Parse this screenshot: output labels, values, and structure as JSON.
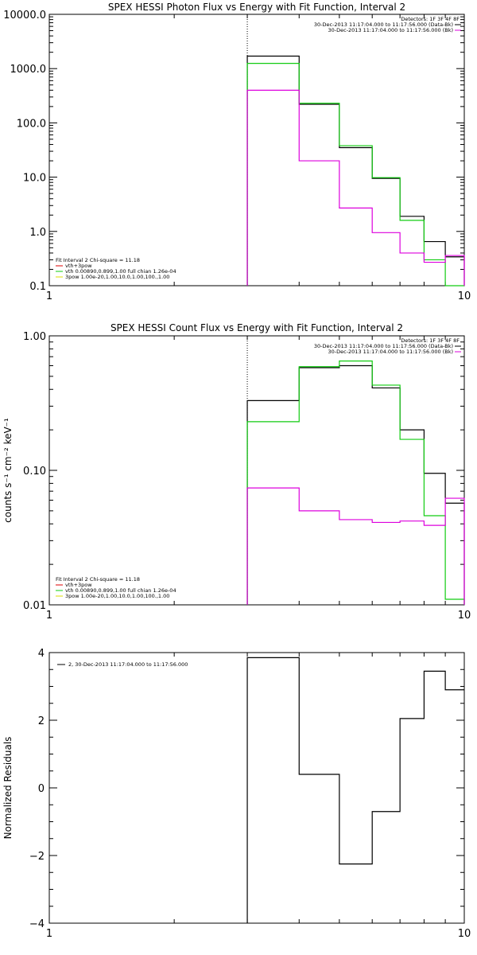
{
  "chart_data": [
    {
      "type": "line",
      "title": "SPEX HESSI Photon Flux vs Energy with Fit Function, Interval 2",
      "xlabel": "",
      "ylabel": "",
      "xscale": "log",
      "yscale": "log",
      "xlim": [
        1,
        10
      ],
      "ylim": [
        0.1,
        10000
      ],
      "x_ticks": [
        "1",
        "10"
      ],
      "y_ticks": [
        "0.1",
        "1.0",
        "10.0",
        "100.0",
        "1000.0",
        "10000.0"
      ],
      "vline_x": 3,
      "legend_top_right": [
        "Detectors: 1F 3F 4F 8F",
        "30-Dec-2013 11:17:04.000 to 11:17:56.000 (Data-Bk)",
        "30-Dec-2013 11:17:04.000 to 11:17:56.000 (Bk)"
      ],
      "legend_bottom_left": [
        "Fit Interval 2   Chi-square = 11.18",
        "vth+3pow",
        "vth 0.00890,0.899,1.00   full chian 1.26e-04",
        "3pow 1.00e-20,1.00,10.0,1.00,100.,1.00"
      ],
      "bin_edges": [
        3,
        4,
        5,
        6,
        7,
        8,
        9,
        10
      ],
      "series": [
        {
          "name": "30-Dec-2013 11:17:04.000 to 11:17:56.000 (Data-Bk)",
          "color": "#000000",
          "values": [
            1700,
            220,
            35,
            9.5,
            1.9,
            0.65,
            0.34
          ]
        },
        {
          "name": "vth+3pow",
          "color": "#11cc11",
          "values": [
            1250,
            230,
            38,
            9.8,
            1.6,
            0.3,
            0.09
          ]
        },
        {
          "name": "30-Dec-2013 11:17:04.000 to 11:17:56.000 (Bk)",
          "color": "#dd00dd",
          "values": [
            400,
            20,
            2.7,
            0.95,
            0.4,
            0.27,
            0.36
          ]
        }
      ]
    },
    {
      "type": "line",
      "title": "SPEX HESSI Count Flux vs Energy with Fit Function, Interval 2",
      "xlabel": "",
      "ylabel": "counts s⁻¹ cm⁻² keV⁻¹",
      "xscale": "log",
      "yscale": "log",
      "xlim": [
        1,
        10
      ],
      "ylim": [
        0.01,
        1
      ],
      "x_ticks": [
        "1",
        "10"
      ],
      "y_ticks": [
        "0.01",
        "0.10",
        "1.00"
      ],
      "vline_x": 3,
      "legend_top_right": [
        "Detectors: 1F 3F 4F 8F",
        "30-Dec-2013 11:17:04.000 to 11:17:56.000 (Data-Bk)",
        "30-Dec-2013 11:17:04.000 to 11:17:56.000 (Bk)"
      ],
      "legend_bottom_left": [
        "Fit Interval 2   Chi-square = 11.18",
        "vth+3pow",
        "vth 0.00890,0.899,1.00   full chian 1.26e-04",
        "3pow 1.00e-20,1.00,10.0,1.00,100.,1.00"
      ],
      "bin_edges": [
        3,
        4,
        5,
        6,
        7,
        8,
        9,
        10
      ],
      "series": [
        {
          "name": "30-Dec-2013 11:17:04.000 to 11:17:56.000 (Data-Bk)",
          "color": "#000000",
          "values": [
            0.33,
            0.58,
            0.6,
            0.41,
            0.2,
            0.095,
            0.057
          ]
        },
        {
          "name": "vth+3pow",
          "color": "#11cc11",
          "values": [
            0.23,
            0.59,
            0.65,
            0.43,
            0.17,
            0.046,
            0.011
          ]
        },
        {
          "name": "30-Dec-2013 11:17:04.000 to 11:17:56.000 (Bk)",
          "color": "#dd00dd",
          "values": [
            0.074,
            0.05,
            0.043,
            0.041,
            0.042,
            0.039,
            0.062
          ]
        }
      ]
    },
    {
      "type": "line",
      "title": "",
      "xlabel": "",
      "ylabel": "Normalized Residuals",
      "xscale": "log",
      "yscale": "linear",
      "xlim": [
        1,
        10
      ],
      "ylim": [
        -4,
        4
      ],
      "x_ticks": [
        "1",
        "10"
      ],
      "y_ticks": [
        "−4",
        "−2",
        "0",
        "2",
        "4"
      ],
      "legend_top_left": [
        "2, 30-Dec-2013 11:17:04.000 to 11:17:56.000"
      ],
      "bin_edges": [
        3,
        4,
        5,
        6,
        7,
        8,
        9,
        10
      ],
      "series": [
        {
          "name": "2, 30-Dec-2013 11:17:04.000 to 11:17:56.000",
          "color": "#000000",
          "values": [
            3.85,
            0.4,
            -2.25,
            -0.7,
            2.05,
            3.45,
            2.9
          ]
        }
      ]
    }
  ]
}
